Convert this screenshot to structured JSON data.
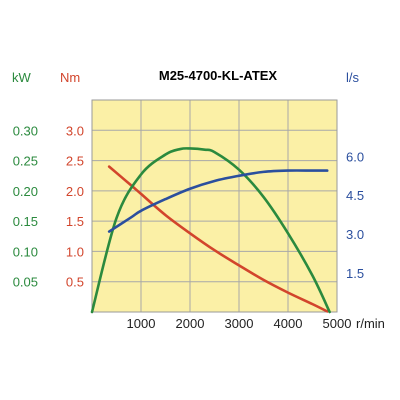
{
  "chart_data": {
    "type": "line",
    "title": "M25-4700-KL-ATEX",
    "x": {
      "unit": "r/min",
      "range": [
        0,
        5000
      ],
      "ticks": [
        1000,
        2000,
        3000,
        4000,
        5000
      ]
    },
    "axes": {
      "power": {
        "unit": "kW",
        "range": [
          0,
          0.35
        ],
        "ticks": [
          0.05,
          0.1,
          0.15,
          0.2,
          0.25,
          0.3
        ],
        "tick_labels": [
          "0.05",
          "0.10",
          "0.15",
          "0.20",
          "0.25",
          "0.30"
        ],
        "side": "left-outer"
      },
      "torque": {
        "unit": "Nm",
        "range": [
          0,
          3.5
        ],
        "ticks": [
          0.5,
          1.0,
          1.5,
          2.0,
          2.5,
          3.0
        ],
        "tick_labels": [
          "0.5",
          "1.0",
          "1.5",
          "2.0",
          "2.5",
          "3.0"
        ],
        "side": "left-inner"
      },
      "flow": {
        "unit": "l/s",
        "range": [
          0,
          8.17
        ],
        "ticks": [
          1.5,
          3.0,
          4.5,
          6.0
        ],
        "tick_labels": [
          "1.5",
          "3.0",
          "4.5",
          "6.0"
        ],
        "side": "right"
      }
    },
    "grid": true,
    "series": [
      {
        "axis": "torque",
        "color": "#d2452c",
        "points": [
          [
            350,
            2.4
          ],
          [
            800,
            2.09
          ],
          [
            1000,
            1.95
          ],
          [
            1500,
            1.6
          ],
          [
            2000,
            1.3
          ],
          [
            2500,
            1.02
          ],
          [
            3000,
            0.77
          ],
          [
            3500,
            0.53
          ],
          [
            4000,
            0.32
          ],
          [
            4500,
            0.13
          ],
          [
            4800,
            0.01
          ]
        ]
      },
      {
        "axis": "power",
        "color": "#2b8a3e",
        "points": [
          [
            0,
            0.0
          ],
          [
            500,
            0.155
          ],
          [
            1000,
            0.227
          ],
          [
            1500,
            0.26
          ],
          [
            1800,
            0.269
          ],
          [
            2000,
            0.27
          ],
          [
            2300,
            0.268
          ],
          [
            2500,
            0.264
          ],
          [
            3000,
            0.235
          ],
          [
            3500,
            0.19
          ],
          [
            4000,
            0.13
          ],
          [
            4500,
            0.06
          ],
          [
            4850,
            0.0
          ]
        ]
      },
      {
        "axis": "flow",
        "color": "#2b4f9e",
        "points": [
          [
            350,
            3.1
          ],
          [
            800,
            3.65
          ],
          [
            1000,
            3.9
          ],
          [
            1500,
            4.35
          ],
          [
            2000,
            4.75
          ],
          [
            2500,
            5.05
          ],
          [
            3000,
            5.25
          ],
          [
            3500,
            5.4
          ],
          [
            4000,
            5.45
          ],
          [
            4500,
            5.45
          ],
          [
            4800,
            5.45
          ]
        ]
      }
    ]
  },
  "colors": {
    "plot_background": "#fbf0a6",
    "grid": "#a8a8a8",
    "power_axis": "#2b8a3e",
    "torque_axis": "#d2452c",
    "flow_axis": "#2b4f9e"
  }
}
